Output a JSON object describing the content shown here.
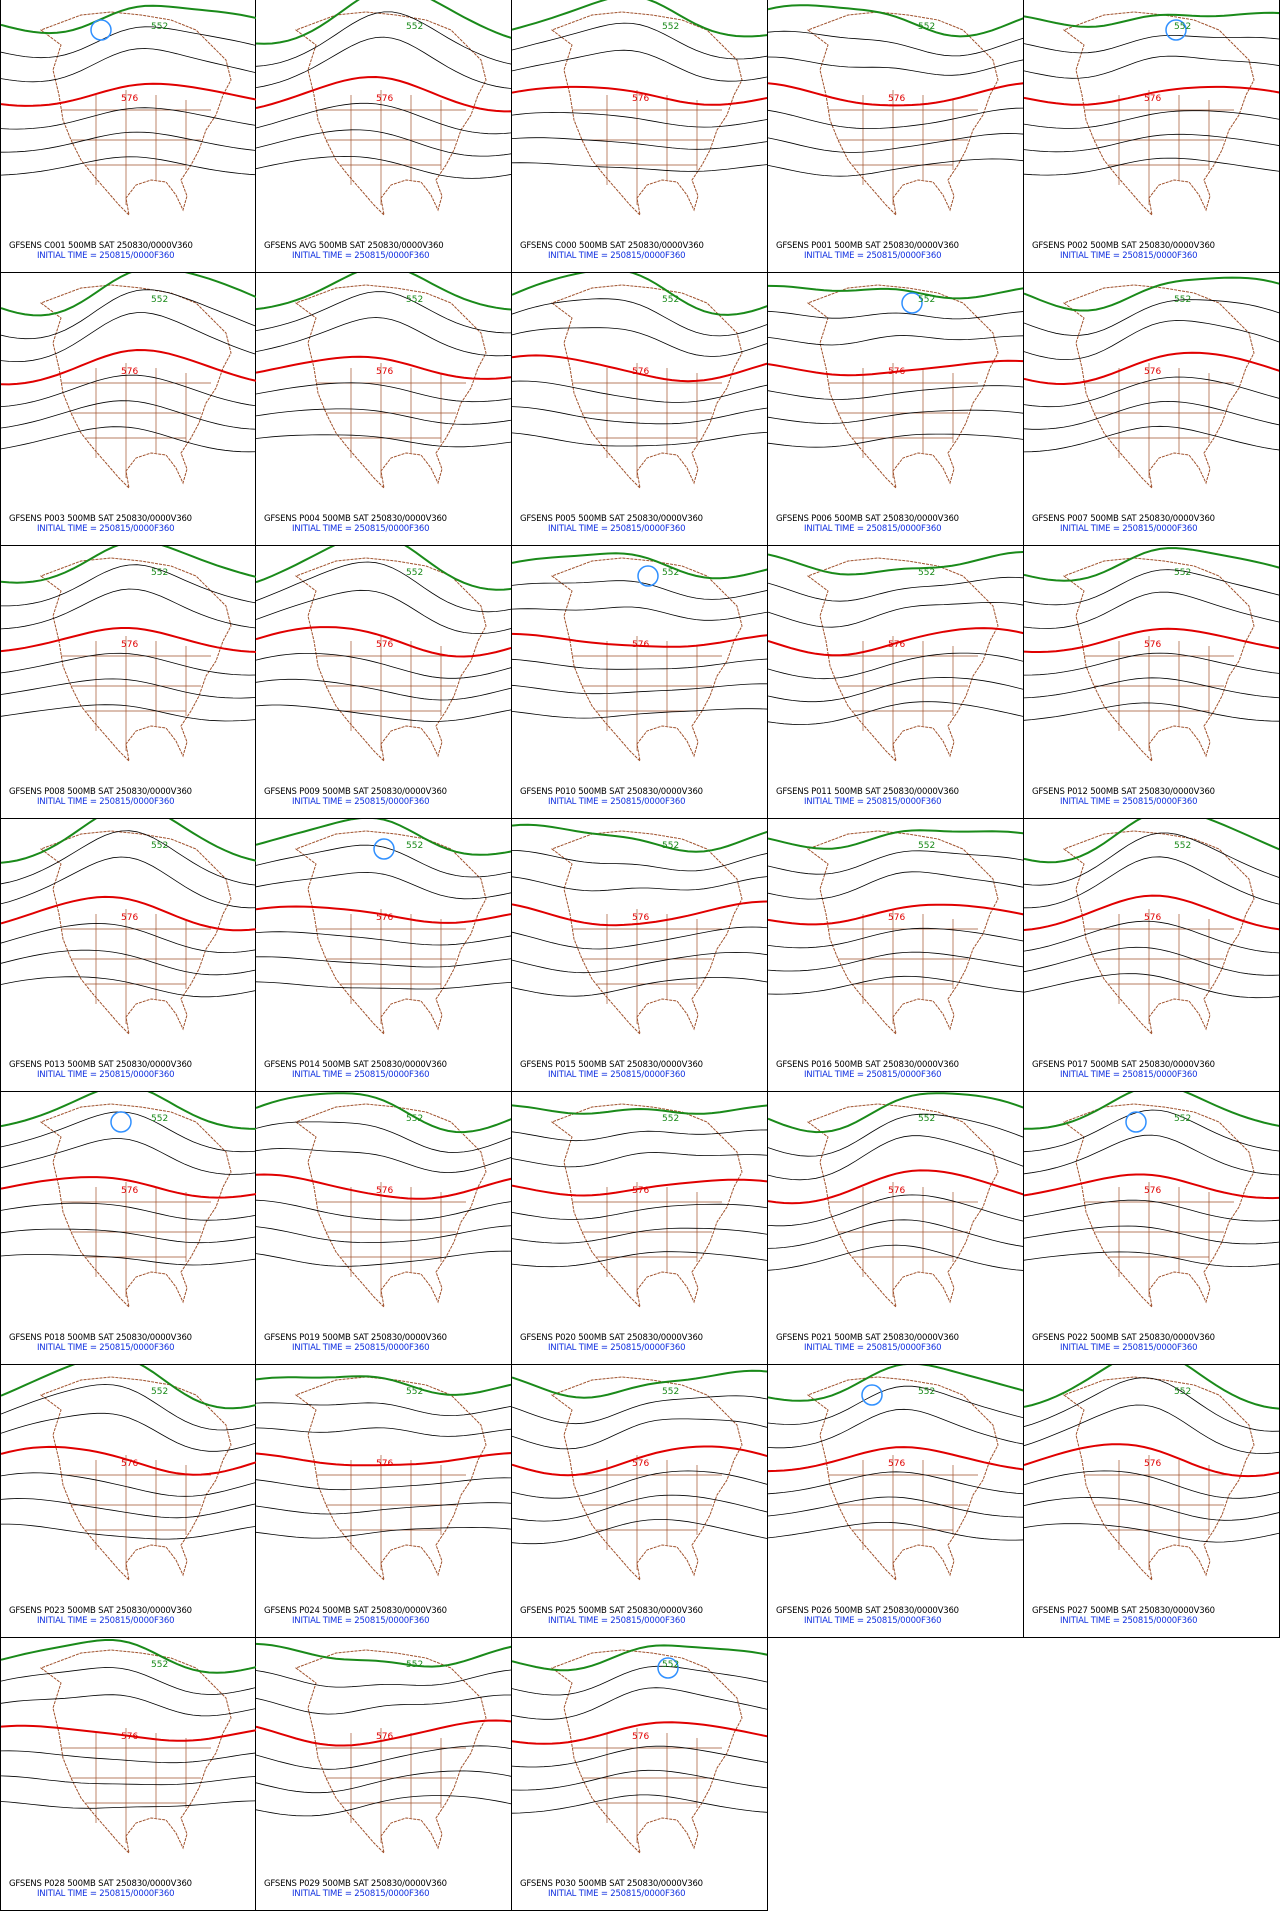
{
  "panels": [
    {
      "label": "GFSENS C001 500MB SAT 250830/0000V360",
      "init": "INITIAL TIME = 250815/0000F360",
      "contours": [
        "576",
        "552"
      ]
    },
    {
      "label": "GFSENS AVG 500MB SAT 250830/0000V360",
      "init": "INITIAL TIME = 250815/0000F360",
      "contours": [
        "576",
        "552"
      ]
    },
    {
      "label": "GFSENS C000 500MB SAT 250830/0000V360",
      "init": "INITIAL TIME = 250815/0000F360",
      "contours": [
        "576",
        "552"
      ]
    },
    {
      "label": "GFSENS P001 500MB SAT 250830/0000V360",
      "init": "INITIAL TIME = 250815/0000F360",
      "contours": [
        "576",
        "552"
      ]
    },
    {
      "label": "GFSENS P002 500MB SAT 250830/0000V360",
      "init": "INITIAL TIME = 250815/0000F360",
      "contours": [
        "576",
        "552"
      ]
    },
    {
      "label": "GFSENS P003 500MB SAT 250830/0000V360",
      "init": "INITIAL TIME = 250815/0000F360",
      "contours": [
        "576",
        "552"
      ]
    },
    {
      "label": "GFSENS P004 500MB SAT 250830/0000V360",
      "init": "INITIAL TIME = 250815/0000F360",
      "contours": [
        "576",
        "552"
      ]
    },
    {
      "label": "GFSENS P005 500MB SAT 250830/0000V360",
      "init": "INITIAL TIME = 250815/0000F360",
      "contours": [
        "576",
        "552"
      ]
    },
    {
      "label": "GFSENS P006 500MB SAT 250830/0000V360",
      "init": "INITIAL TIME = 250815/0000F360",
      "contours": [
        "576",
        "552"
      ]
    },
    {
      "label": "GFSENS P007 500MB SAT 250830/0000V360",
      "init": "INITIAL TIME = 250815/0000F360",
      "contours": [
        "576",
        "552"
      ]
    },
    {
      "label": "GFSENS P008 500MB SAT 250830/0000V360",
      "init": "INITIAL TIME = 250815/0000F360",
      "contours": [
        "576",
        "552"
      ]
    },
    {
      "label": "GFSENS P009 500MB SAT 250830/0000V360",
      "init": "INITIAL TIME = 250815/0000F360",
      "contours": [
        "576",
        "552"
      ]
    },
    {
      "label": "GFSENS P010 500MB SAT 250830/0000V360",
      "init": "INITIAL TIME = 250815/0000F360",
      "contours": [
        "576",
        "552"
      ]
    },
    {
      "label": "GFSENS P011 500MB SAT 250830/0000V360",
      "init": "INITIAL TIME = 250815/0000F360",
      "contours": [
        "576",
        "552"
      ]
    },
    {
      "label": "GFSENS P012 500MB SAT 250830/0000V360",
      "init": "INITIAL TIME = 250815/0000F360",
      "contours": [
        "576",
        "552"
      ]
    },
    {
      "label": "GFSENS P013 500MB SAT 250830/0000V360",
      "init": "INITIAL TIME = 250815/0000F360",
      "contours": [
        "576",
        "552"
      ]
    },
    {
      "label": "GFSENS P014 500MB SAT 250830/0000V360",
      "init": "INITIAL TIME = 250815/0000F360",
      "contours": [
        "576",
        "552"
      ]
    },
    {
      "label": "GFSENS P015 500MB SAT 250830/0000V360",
      "init": "INITIAL TIME = 250815/0000F360",
      "contours": [
        "576",
        "552"
      ]
    },
    {
      "label": "GFSENS P016 500MB SAT 250830/0000V360",
      "init": "INITIAL TIME = 250815/0000F360",
      "contours": [
        "576",
        "552"
      ]
    },
    {
      "label": "GFSENS P017 500MB SAT 250830/0000V360",
      "init": "INITIAL TIME = 250815/0000F360",
      "contours": [
        "576",
        "552"
      ]
    },
    {
      "label": "GFSENS P018 500MB SAT 250830/0000V360",
      "init": "INITIAL TIME = 250815/0000F360",
      "contours": [
        "576",
        "552"
      ]
    },
    {
      "label": "GFSENS P019 500MB SAT 250830/0000V360",
      "init": "INITIAL TIME = 250815/0000F360",
      "contours": [
        "576",
        "552"
      ]
    },
    {
      "label": "GFSENS P020 500MB SAT 250830/0000V360",
      "init": "INITIAL TIME = 250815/0000F360",
      "contours": [
        "576",
        "552"
      ]
    },
    {
      "label": "GFSENS P021 500MB SAT 250830/0000V360",
      "init": "INITIAL TIME = 250815/0000F360",
      "contours": [
        "576",
        "552"
      ]
    },
    {
      "label": "GFSENS P022 500MB SAT 250830/0000V360",
      "init": "INITIAL TIME = 250815/0000F360",
      "contours": [
        "576",
        "552"
      ]
    },
    {
      "label": "GFSENS P023 500MB SAT 250830/0000V360",
      "init": "INITIAL TIME = 250815/0000F360",
      "contours": [
        "576",
        "552"
      ]
    },
    {
      "label": "GFSENS P024 500MB SAT 250830/0000V360",
      "init": "INITIAL TIME = 250815/0000F360",
      "contours": [
        "576",
        "552"
      ]
    },
    {
      "label": "GFSENS P025 500MB SAT 250830/0000V360",
      "init": "INITIAL TIME = 250815/0000F360",
      "contours": [
        "576",
        "552"
      ]
    },
    {
      "label": "GFSENS P026 500MB SAT 250830/0000V360",
      "init": "INITIAL TIME = 250815/0000F360",
      "contours": [
        "576",
        "552"
      ]
    },
    {
      "label": "GFSENS P027 500MB SAT 250830/0000V360",
      "init": "INITIAL TIME = 250815/0000F360",
      "contours": [
        "576",
        "552"
      ]
    },
    {
      "label": "GFSENS P028 500MB SAT 250830/0000V360",
      "init": "INITIAL TIME = 250815/0000F360",
      "contours": [
        "576",
        "552"
      ]
    },
    {
      "label": "GFSENS P029 500MB SAT 250830/0000V360",
      "init": "INITIAL TIME = 250815/0000F360",
      "contours": [
        "576",
        "552"
      ]
    },
    {
      "label": "GFSENS P030 500MB SAT 250830/0000V360",
      "init": "INITIAL TIME = 250815/0000F360",
      "contours": [
        "576",
        "552"
      ]
    }
  ]
}
